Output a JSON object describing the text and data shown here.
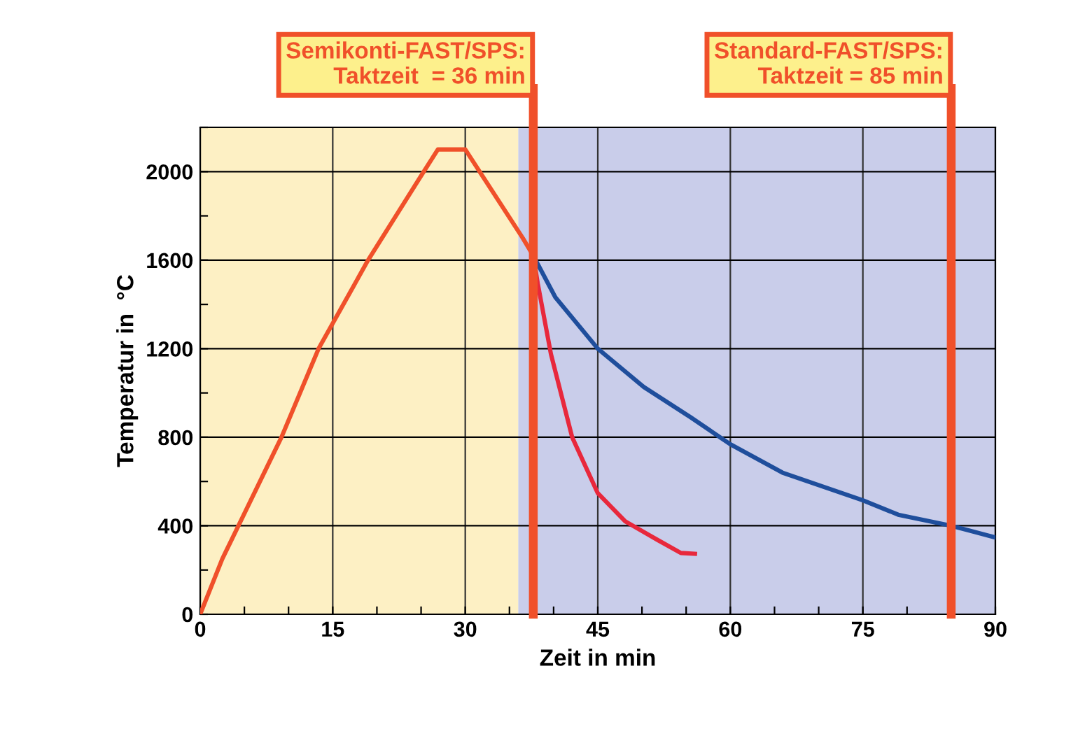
{
  "chart_data": {
    "type": "line",
    "xlabel": "Zeit in min",
    "ylabel": "Temperatur in  °C",
    "xlim": [
      0,
      90
    ],
    "ylim": [
      0,
      2200
    ],
    "xticks": [
      0,
      {
        "value": 5,
        "label": null
      },
      {
        "value": 10,
        "label": null
      },
      15,
      {
        "value": 20,
        "label": null
      },
      {
        "value": 25,
        "label": null
      },
      30,
      {
        "value": 35,
        "label": null
      },
      {
        "value": 40,
        "label": null
      },
      45,
      {
        "value": 50,
        "label": null
      },
      {
        "value": 55,
        "label": null
      },
      60,
      {
        "value": 65,
        "label": null
      },
      {
        "value": 70,
        "label": null
      },
      75,
      {
        "value": 80,
        "label": null
      },
      {
        "value": 85,
        "label": null
      },
      90
    ],
    "yticks": [
      0,
      {
        "value": 200,
        "label": null
      },
      400,
      {
        "value": 600,
        "label": null
      },
      800,
      {
        "value": 1000,
        "label": null
      },
      1200,
      {
        "value": 1400,
        "label": null
      },
      1600,
      {
        "value": 1800,
        "label": null
      },
      2000,
      {
        "value": 2200,
        "label": null
      }
    ],
    "grid": true,
    "legend": false,
    "line_style": "solid",
    "marker": "none",
    "series": [
      {
        "color": "#f0502a",
        "x": [
          0,
          2.5,
          9.2,
          13.4,
          19.0,
          25.3,
          26.9,
          30,
          36.5,
          37.7
        ],
        "values": [
          0,
          250,
          800,
          1200,
          1600,
          2000,
          2100,
          2100,
          1700,
          1620
        ]
      },
      {
        "color": "#e8283c",
        "x": [
          37.7,
          38.2,
          39.7,
          42.1,
          45,
          48.1,
          51.8,
          54.4,
          56
        ],
        "values": [
          1620,
          1495,
          1175,
          800,
          547,
          420,
          335,
          277,
          273
        ]
      },
      {
        "color": "#1f4e9c",
        "x": [
          37.7,
          40.2,
          45,
          50.2,
          55.5,
          60,
          65.9,
          75,
          79,
          85,
          90
        ],
        "values": [
          1620,
          1432,
          1200,
          1027,
          890,
          768,
          640,
          515,
          450,
          400,
          347
        ]
      }
    ],
    "bands": [
      {
        "axis": "x",
        "from": 0,
        "to": 36,
        "color": "#fdf0c4"
      },
      {
        "axis": "x",
        "from": 36,
        "to": 90,
        "color": "#c9cdea"
      }
    ],
    "ref_lines": [
      {
        "axis": "x",
        "value": 37.7,
        "color": "#f0502a"
      },
      {
        "axis": "x",
        "value": 85,
        "color": "#f0502a"
      }
    ],
    "annotations": [
      "Semikonti-FAST/SPS:\nTaktzeit  = 36 min",
      "Standard-FAST/SPS:\nTaktzeit = 85 min"
    ]
  }
}
